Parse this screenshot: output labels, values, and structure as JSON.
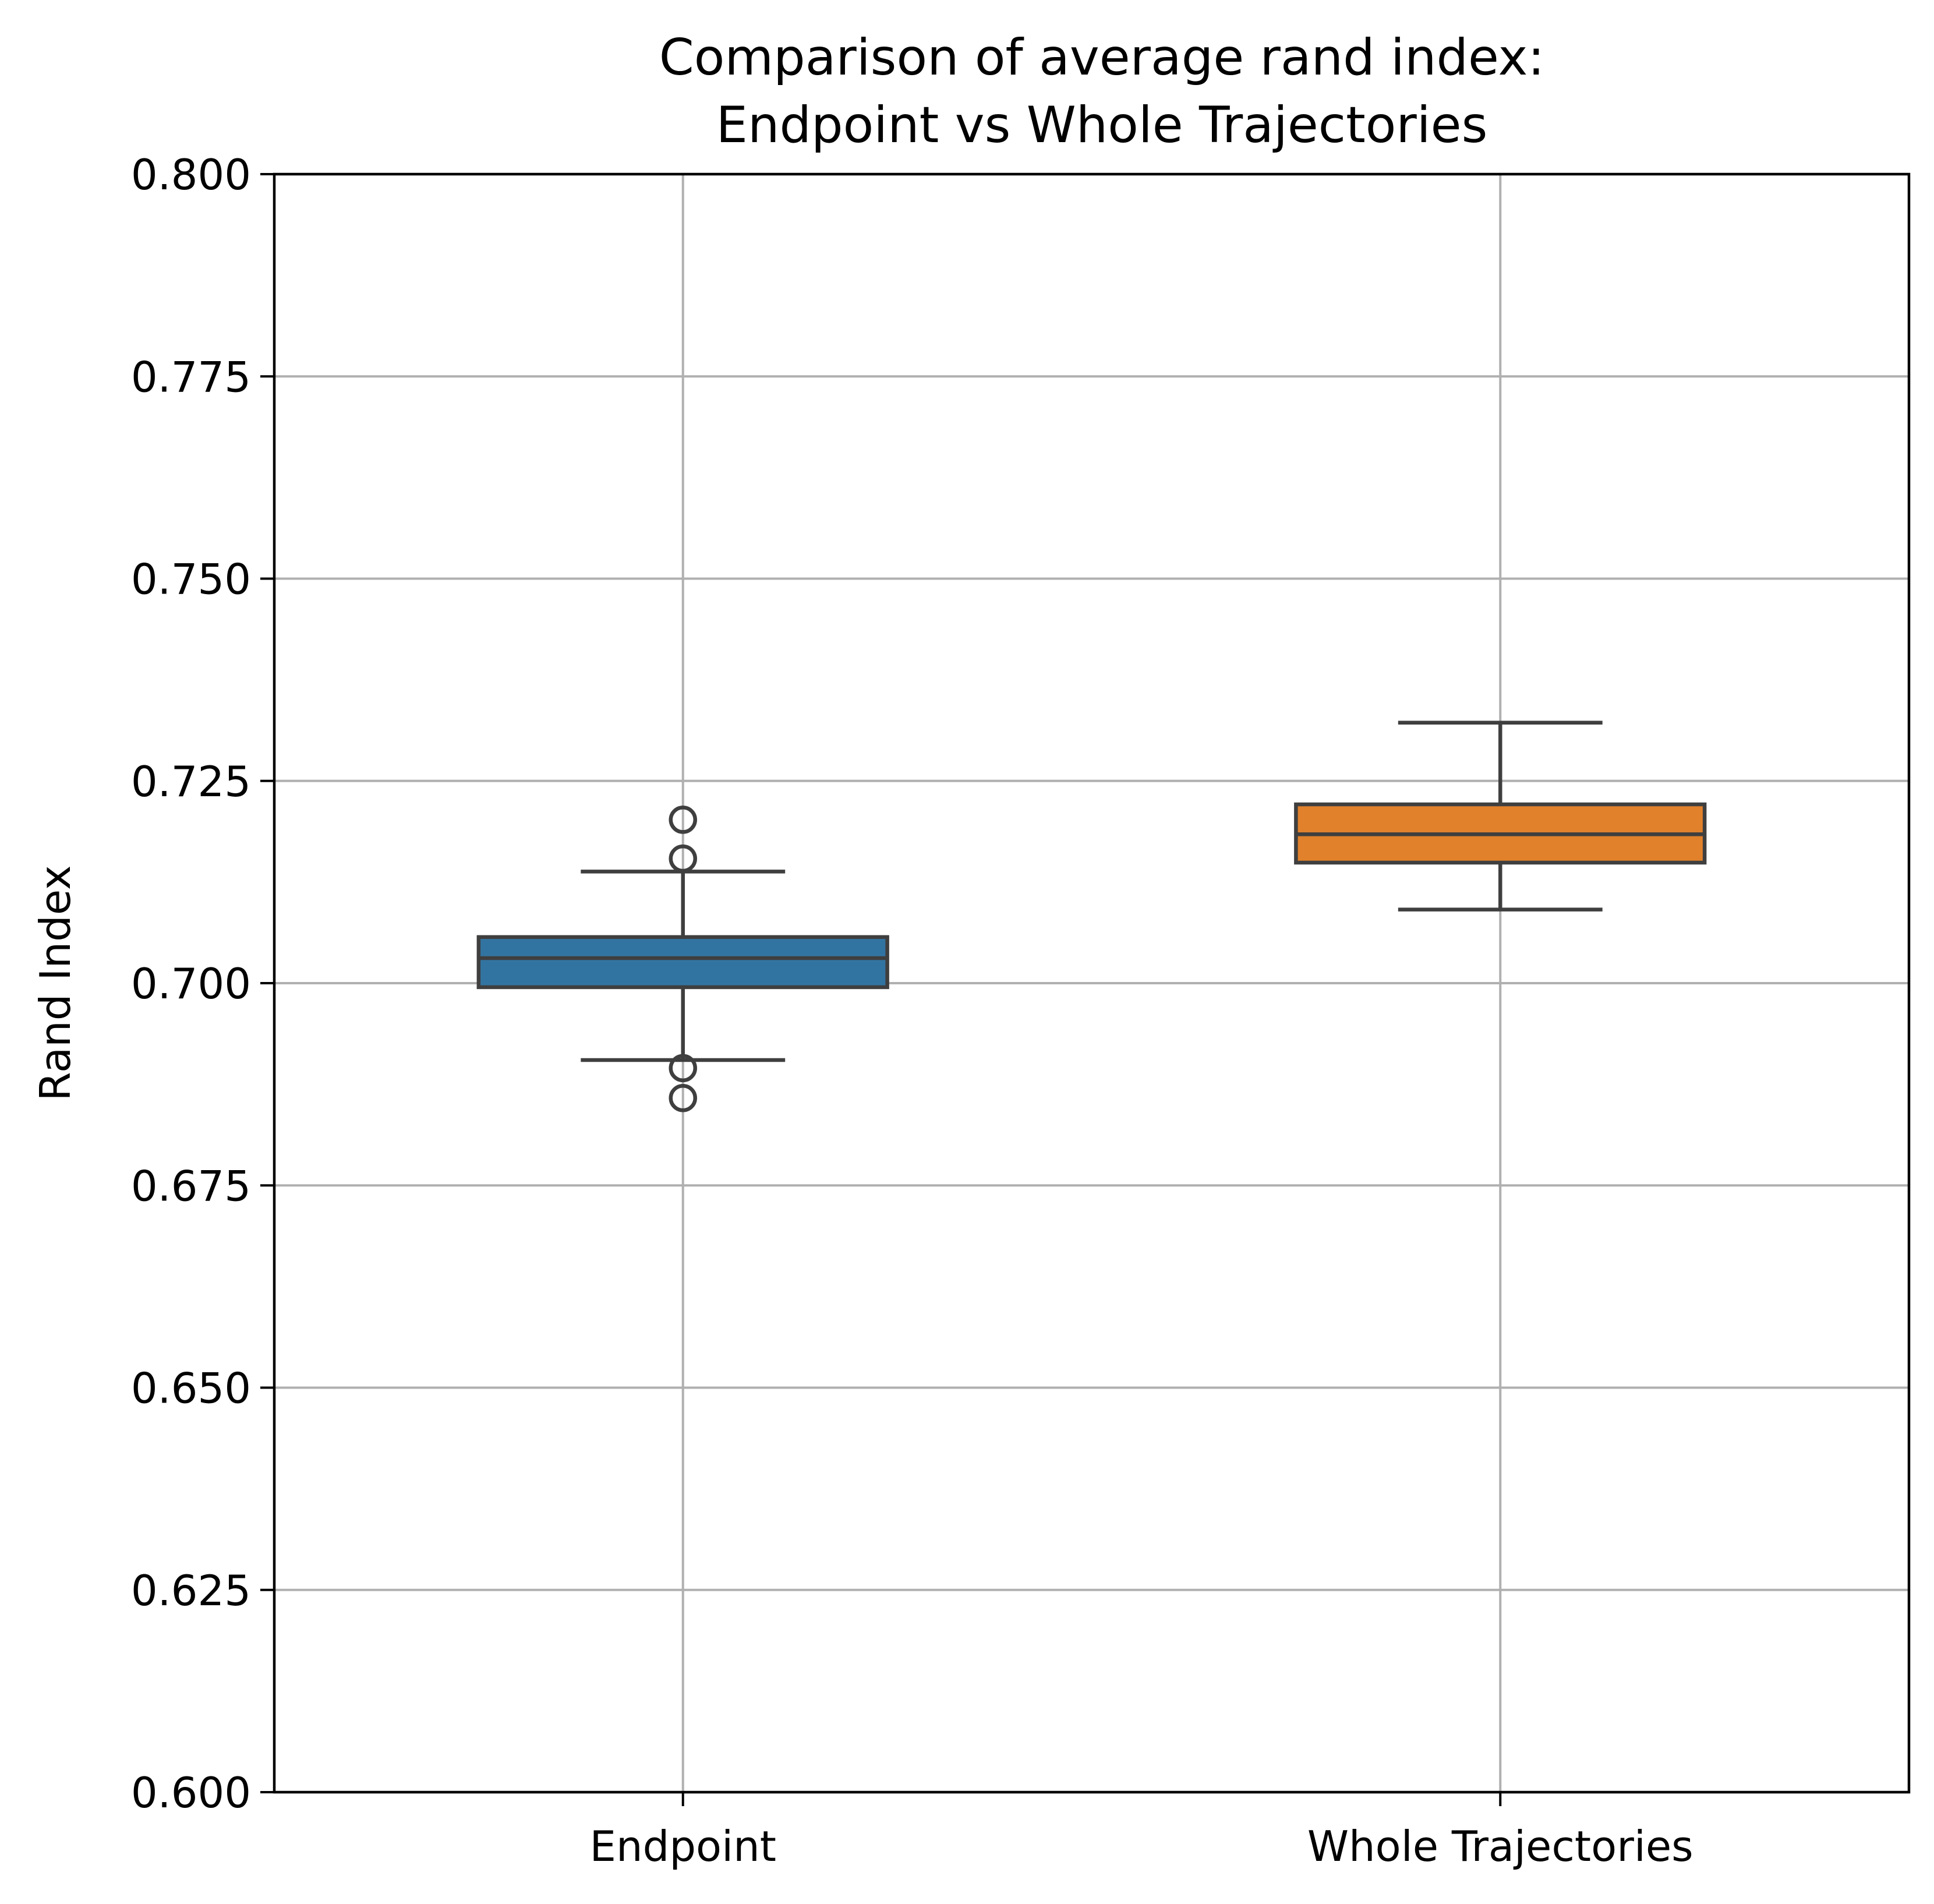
{
  "chart_data": {
    "type": "box",
    "title": [
      "Comparison of average rand index:",
      "Endpoint vs Whole Trajectories"
    ],
    "xlabel": "",
    "ylabel": "Rand Index",
    "ylim": [
      0.6,
      0.8
    ],
    "yticks": [
      0.6,
      0.625,
      0.65,
      0.675,
      0.7,
      0.725,
      0.75,
      0.775,
      0.8
    ],
    "ytick_labels": [
      "0.600",
      "0.625",
      "0.650",
      "0.675",
      "0.700",
      "0.725",
      "0.750",
      "0.775",
      "0.800"
    ],
    "grid": true,
    "categories": [
      "Endpoint",
      "Whole Trajectories"
    ],
    "boxes": [
      {
        "category": "Endpoint",
        "color": "#3274a1",
        "whisker_low": 0.6905,
        "q1": 0.6995,
        "median": 0.7031,
        "q3": 0.7057,
        "whisker_high": 0.7138,
        "outliers": [
          0.7202,
          0.7154,
          0.6895,
          0.6858
        ]
      },
      {
        "category": "Whole Trajectories",
        "color": "#e1812c",
        "whisker_low": 0.7091,
        "q1": 0.7149,
        "median": 0.7184,
        "q3": 0.7221,
        "whisker_high": 0.7322,
        "outliers": []
      }
    ]
  }
}
